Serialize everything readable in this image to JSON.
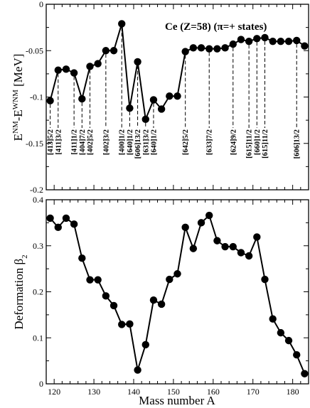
{
  "chart_data": [
    {
      "type": "line",
      "title": "Ce (Z=58) (π=+ states)",
      "xlabel": "",
      "ylabel": "E^NM - E^WNM [MeV]",
      "ylabel_main_1": "E",
      "ylabel_sup_1": "NM",
      "ylabel_mid": "-E",
      "ylabel_sup_2": "WNM",
      "ylabel_unit": " [MeV]",
      "xlim": [
        118,
        184
      ],
      "ylim": [
        -0.2,
        0
      ],
      "yticks": [
        0,
        -0.05,
        -0.1,
        -0.15,
        -0.2
      ],
      "ytick_labels": [
        "0",
        "-0.05",
        "-0.1",
        "-0.15",
        "-0.2"
      ],
      "grid": false,
      "series": [
        {
          "x": [
            119,
            121,
            123,
            125,
            127,
            129,
            131,
            133,
            135,
            137,
            139,
            141,
            143,
            145,
            147,
            149,
            151,
            153,
            155,
            157,
            159,
            161,
            163,
            165,
            167,
            169,
            171,
            173,
            175,
            177,
            179,
            181,
            183
          ],
          "y": [
            -0.104,
            -0.071,
            -0.07,
            -0.074,
            -0.102,
            -0.067,
            -0.064,
            -0.05,
            -0.05,
            -0.021,
            -0.112,
            -0.062,
            -0.124,
            -0.103,
            -0.113,
            -0.099,
            -0.099,
            -0.051,
            -0.047,
            -0.047,
            -0.048,
            -0.048,
            -0.047,
            -0.043,
            -0.038,
            -0.04,
            -0.037,
            -0.036,
            -0.04,
            -0.04,
            -0.04,
            -0.039,
            -0.045
          ]
        }
      ],
      "state_labels": [
        {
          "x": 119,
          "text": "[413]5/2"
        },
        {
          "x": 121,
          "text": "[411]3/2"
        },
        {
          "x": 125,
          "text": "[411]1/2"
        },
        {
          "x": 127,
          "text": "[404]7/2"
        },
        {
          "x": 129,
          "text": "[402]5/2"
        },
        {
          "x": 133,
          "text": "[402]3/2"
        },
        {
          "x": 137,
          "text": "[400]1/2"
        },
        {
          "x": 139,
          "text": "[640]1/2"
        },
        {
          "x": 141,
          "text": "[606]13/2"
        },
        {
          "x": 143,
          "text": "[631]3/2"
        },
        {
          "x": 145,
          "text": "[640]1/2"
        },
        {
          "x": 153,
          "text": "[642]5/2"
        },
        {
          "x": 159,
          "text": "[633]7/2"
        },
        {
          "x": 165,
          "text": "[624]9/2"
        },
        {
          "x": 169,
          "text": "[615]11/2"
        },
        {
          "x": 171,
          "text": "[660]1/2"
        },
        {
          "x": 173,
          "text": "[615]11/2"
        },
        {
          "x": 181,
          "text": "[606]13/2"
        }
      ]
    },
    {
      "type": "line",
      "title": "",
      "xlabel": "Mass number A",
      "ylabel": "Deformation β2",
      "ylabel_main": "Deformation  β",
      "ylabel_sub": "2",
      "xlim": [
        118,
        184
      ],
      "ylim": [
        0,
        0.4
      ],
      "xticks": [
        120,
        130,
        140,
        150,
        160,
        170,
        180
      ],
      "xtick_labels": [
        "120",
        "130",
        "140",
        "150",
        "160",
        "170",
        "180"
      ],
      "yticks": [
        0,
        0.1,
        0.2,
        0.3,
        0.4
      ],
      "ytick_labels": [
        "0",
        "0.1",
        "0.2",
        "0.3",
        "0.4"
      ],
      "grid": false,
      "series": [
        {
          "x": [
            119,
            121,
            123,
            125,
            127,
            129,
            131,
            133,
            135,
            137,
            139,
            141,
            143,
            145,
            147,
            149,
            151,
            153,
            155,
            157,
            159,
            161,
            163,
            165,
            167,
            169,
            171,
            173,
            175,
            177,
            179,
            181,
            183
          ],
          "y": [
            0.36,
            0.34,
            0.36,
            0.347,
            0.273,
            0.226,
            0.226,
            0.191,
            0.17,
            0.129,
            0.13,
            0.03,
            0.085,
            0.182,
            0.173,
            0.227,
            0.239,
            0.34,
            0.294,
            0.35,
            0.366,
            0.311,
            0.298,
            0.298,
            0.285,
            0.278,
            0.319,
            0.227,
            0.141,
            0.111,
            0.094,
            0.063,
            0.022
          ]
        }
      ]
    }
  ]
}
